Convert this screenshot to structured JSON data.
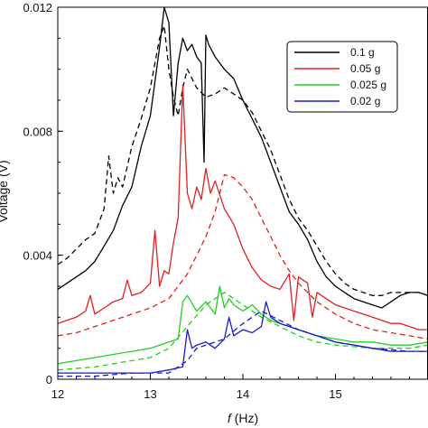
{
  "chart_data": {
    "type": "line",
    "xlabel_italic": "f",
    "xlabel_rest": " (Hz)",
    "ylabel": "Voltage (V)",
    "xlim": [
      12,
      16
    ],
    "ylim": [
      0,
      0.012
    ],
    "xticks": [
      {
        "value": 12,
        "label": "12"
      },
      {
        "value": 13,
        "label": "13"
      },
      {
        "value": 14,
        "label": "14"
      },
      {
        "value": 15,
        "label": "15"
      }
    ],
    "yticks": [
      {
        "value": 0,
        "label": "0"
      },
      {
        "value": 0.004,
        "label": "0.004"
      },
      {
        "value": 0.008,
        "label": "0.008"
      },
      {
        "value": 0.012,
        "label": "0.012"
      }
    ],
    "legend": "top-right",
    "series": [
      {
        "name": "0.1 g",
        "color": "#000000",
        "dash": false,
        "x": [
          12.0,
          12.1,
          12.2,
          12.3,
          12.4,
          12.5,
          12.6,
          12.7,
          12.8,
          12.9,
          13.0,
          13.05,
          13.1,
          13.15,
          13.2,
          13.25,
          13.3,
          13.35,
          13.4,
          13.45,
          13.5,
          13.55,
          13.58,
          13.6,
          13.63,
          13.7,
          13.8,
          13.9,
          14.0,
          14.1,
          14.2,
          14.3,
          14.4,
          14.5,
          14.6,
          14.7,
          14.8,
          14.9,
          15.0,
          15.1,
          15.2,
          15.3,
          15.4,
          15.5,
          15.6,
          15.7,
          15.8,
          15.9,
          16.0
        ],
        "y": [
          0.0029,
          0.0031,
          0.0033,
          0.0035,
          0.0038,
          0.0043,
          0.0048,
          0.0056,
          0.0062,
          0.0075,
          0.0085,
          0.0096,
          0.0107,
          0.012,
          0.0115,
          0.0085,
          0.0102,
          0.011,
          0.0106,
          0.0108,
          0.0104,
          0.0102,
          0.007,
          0.0111,
          0.0108,
          0.0104,
          0.01,
          0.0097,
          0.009,
          0.0084,
          0.0078,
          0.007,
          0.0062,
          0.0054,
          0.005,
          0.0045,
          0.0038,
          0.0033,
          0.003,
          0.0028,
          0.0026,
          0.0025,
          0.0024,
          0.0023,
          0.0025,
          0.0027,
          0.0028,
          0.0028,
          0.0027
        ]
      },
      {
        "name": "0.1 g",
        "color": "#000000",
        "dash": true,
        "x": [
          12.0,
          12.1,
          12.2,
          12.3,
          12.4,
          12.5,
          12.55,
          12.6,
          12.65,
          12.7,
          12.8,
          12.9,
          13.0,
          13.1,
          13.15,
          13.2,
          13.25,
          13.3,
          13.35,
          13.4,
          13.5,
          13.6,
          13.7,
          13.8,
          13.9,
          14.0,
          14.1,
          14.2,
          14.3,
          14.4,
          14.5,
          14.6,
          14.7,
          14.8,
          14.9,
          15.0,
          15.1,
          15.2,
          15.3,
          15.4,
          15.5,
          15.6,
          15.7,
          15.8,
          15.9,
          16.0
        ],
        "y": [
          0.0037,
          0.0039,
          0.0042,
          0.0045,
          0.0047,
          0.0055,
          0.0072,
          0.006,
          0.0065,
          0.0062,
          0.0075,
          0.0084,
          0.0094,
          0.011,
          0.0114,
          0.01,
          0.0091,
          0.0085,
          0.0094,
          0.01,
          0.0094,
          0.0091,
          0.0092,
          0.0094,
          0.0092,
          0.009,
          0.0086,
          0.008,
          0.0074,
          0.0066,
          0.0058,
          0.0052,
          0.0048,
          0.0043,
          0.0038,
          0.0034,
          0.0031,
          0.0029,
          0.0028,
          0.0027,
          0.0027,
          0.0028,
          0.0028,
          0.0028,
          0.0028,
          0.0027
        ]
      },
      {
        "name": "0.05 g",
        "color": "#e02020",
        "dash": false,
        "x": [
          12.0,
          12.1,
          12.2,
          12.3,
          12.35,
          12.4,
          12.5,
          12.6,
          12.7,
          12.75,
          12.8,
          12.9,
          13.0,
          13.05,
          13.1,
          13.15,
          13.2,
          13.25,
          13.3,
          13.35,
          13.4,
          13.45,
          13.5,
          13.55,
          13.6,
          13.65,
          13.7,
          13.8,
          13.9,
          14.0,
          14.1,
          14.2,
          14.3,
          14.4,
          14.5,
          14.55,
          14.6,
          14.7,
          14.75,
          14.8,
          14.9,
          15.0,
          15.1,
          15.2,
          15.3,
          15.4,
          15.5,
          15.6,
          15.7,
          15.8,
          15.9,
          16.0
        ],
        "y": [
          0.0018,
          0.0019,
          0.002,
          0.0022,
          0.0027,
          0.0021,
          0.0023,
          0.0025,
          0.0026,
          0.0032,
          0.0027,
          0.0028,
          0.0031,
          0.0048,
          0.003,
          0.0035,
          0.0034,
          0.0044,
          0.0052,
          0.0095,
          0.006,
          0.0055,
          0.0062,
          0.0058,
          0.0068,
          0.006,
          0.0064,
          0.0055,
          0.005,
          0.0042,
          0.0036,
          0.0032,
          0.003,
          0.0029,
          0.0034,
          0.0019,
          0.0033,
          0.0031,
          0.002,
          0.0028,
          0.0026,
          0.0024,
          0.0023,
          0.0022,
          0.0021,
          0.002,
          0.0019,
          0.0018,
          0.0018,
          0.0017,
          0.0016,
          0.0016
        ]
      },
      {
        "name": "0.05 g",
        "color": "#e02020",
        "dash": true,
        "x": [
          12.0,
          12.2,
          12.4,
          12.6,
          12.8,
          13.0,
          13.2,
          13.3,
          13.4,
          13.5,
          13.6,
          13.7,
          13.8,
          13.9,
          14.0,
          14.1,
          14.2,
          14.3,
          14.4,
          14.5,
          14.6,
          14.7,
          14.8,
          15.0,
          15.2,
          15.4,
          15.6,
          15.8,
          16.0
        ],
        "y": [
          0.0014,
          0.0015,
          0.0017,
          0.0019,
          0.0021,
          0.0023,
          0.0026,
          0.003,
          0.0034,
          0.004,
          0.0046,
          0.0054,
          0.0066,
          0.0065,
          0.0062,
          0.0058,
          0.0052,
          0.0046,
          0.004,
          0.0035,
          0.0031,
          0.0028,
          0.0025,
          0.0021,
          0.0018,
          0.0016,
          0.0015,
          0.0014,
          0.0013
        ]
      },
      {
        "name": "0.025 g",
        "color": "#20d020",
        "dash": false,
        "x": [
          12.0,
          12.2,
          12.4,
          12.6,
          12.8,
          13.0,
          13.2,
          13.3,
          13.35,
          13.4,
          13.5,
          13.6,
          13.7,
          13.75,
          13.8,
          13.85,
          13.9,
          14.0,
          14.1,
          14.2,
          14.3,
          14.4,
          14.5,
          14.6,
          14.7,
          14.8,
          15.0,
          15.2,
          15.4,
          15.6,
          15.8,
          16.0
        ],
        "y": [
          0.0005,
          0.0006,
          0.0007,
          0.0008,
          0.0009,
          0.001,
          0.0012,
          0.0013,
          0.0025,
          0.0027,
          0.0022,
          0.0025,
          0.0021,
          0.003,
          0.0023,
          0.0026,
          0.0024,
          0.0022,
          0.0024,
          0.0021,
          0.0019,
          0.0018,
          0.0017,
          0.0016,
          0.0015,
          0.0014,
          0.0013,
          0.0012,
          0.0012,
          0.0011,
          0.0011,
          0.0012
        ]
      },
      {
        "name": "0.025 g",
        "color": "#20d020",
        "dash": true,
        "x": [
          12.0,
          12.4,
          12.8,
          13.0,
          13.2,
          13.4,
          13.6,
          13.8,
          13.9,
          14.0,
          14.2,
          14.4,
          14.6,
          14.8,
          15.0,
          15.4,
          15.8,
          16.0
        ],
        "y": [
          0.0003,
          0.0004,
          0.0006,
          0.0007,
          0.001,
          0.0017,
          0.0024,
          0.0028,
          0.0026,
          0.0024,
          0.002,
          0.0017,
          0.0014,
          0.0012,
          0.0011,
          0.001,
          0.001,
          0.0011
        ]
      },
      {
        "name": "0.02 g",
        "color": "#1a1acc",
        "dash": false,
        "x": [
          12.0,
          12.4,
          12.8,
          13.0,
          13.2,
          13.35,
          13.4,
          13.45,
          13.5,
          13.6,
          13.7,
          13.8,
          13.85,
          13.9,
          14.0,
          14.1,
          14.2,
          14.25,
          14.3,
          14.4,
          14.5,
          14.6,
          14.8,
          15.0,
          15.2,
          15.4,
          15.6,
          15.8,
          16.0
        ],
        "y": [
          0.0002,
          0.0002,
          0.0002,
          0.0002,
          0.0003,
          0.0004,
          0.0016,
          0.001,
          0.0011,
          0.0012,
          0.001,
          0.0013,
          0.002,
          0.0014,
          0.0016,
          0.0015,
          0.0017,
          0.0025,
          0.002,
          0.0018,
          0.0017,
          0.0016,
          0.0014,
          0.0012,
          0.0011,
          0.001,
          0.0009,
          0.0009,
          0.0009
        ]
      },
      {
        "name": "0.02 g",
        "color": "#1a1acc",
        "dash": true,
        "x": [
          12.0,
          12.4,
          12.8,
          13.2,
          13.4,
          13.5,
          13.6,
          13.8,
          14.0,
          14.2,
          14.4,
          14.6,
          14.8,
          15.0,
          15.4,
          15.8,
          16.0
        ],
        "y": [
          0.0001,
          0.0001,
          0.0002,
          0.0002,
          0.0006,
          0.001,
          0.0011,
          0.0013,
          0.0018,
          0.0022,
          0.0019,
          0.0016,
          0.0014,
          0.0012,
          0.001,
          0.0009,
          0.0009
        ]
      }
    ],
    "legend_entries": [
      {
        "label": "0.1 g",
        "color": "#000000"
      },
      {
        "label": "0.05 g",
        "color": "#e02020"
      },
      {
        "label": "0.025 g",
        "color": "#20d020"
      },
      {
        "label": "0.02 g",
        "color": "#1a1acc"
      }
    ]
  }
}
